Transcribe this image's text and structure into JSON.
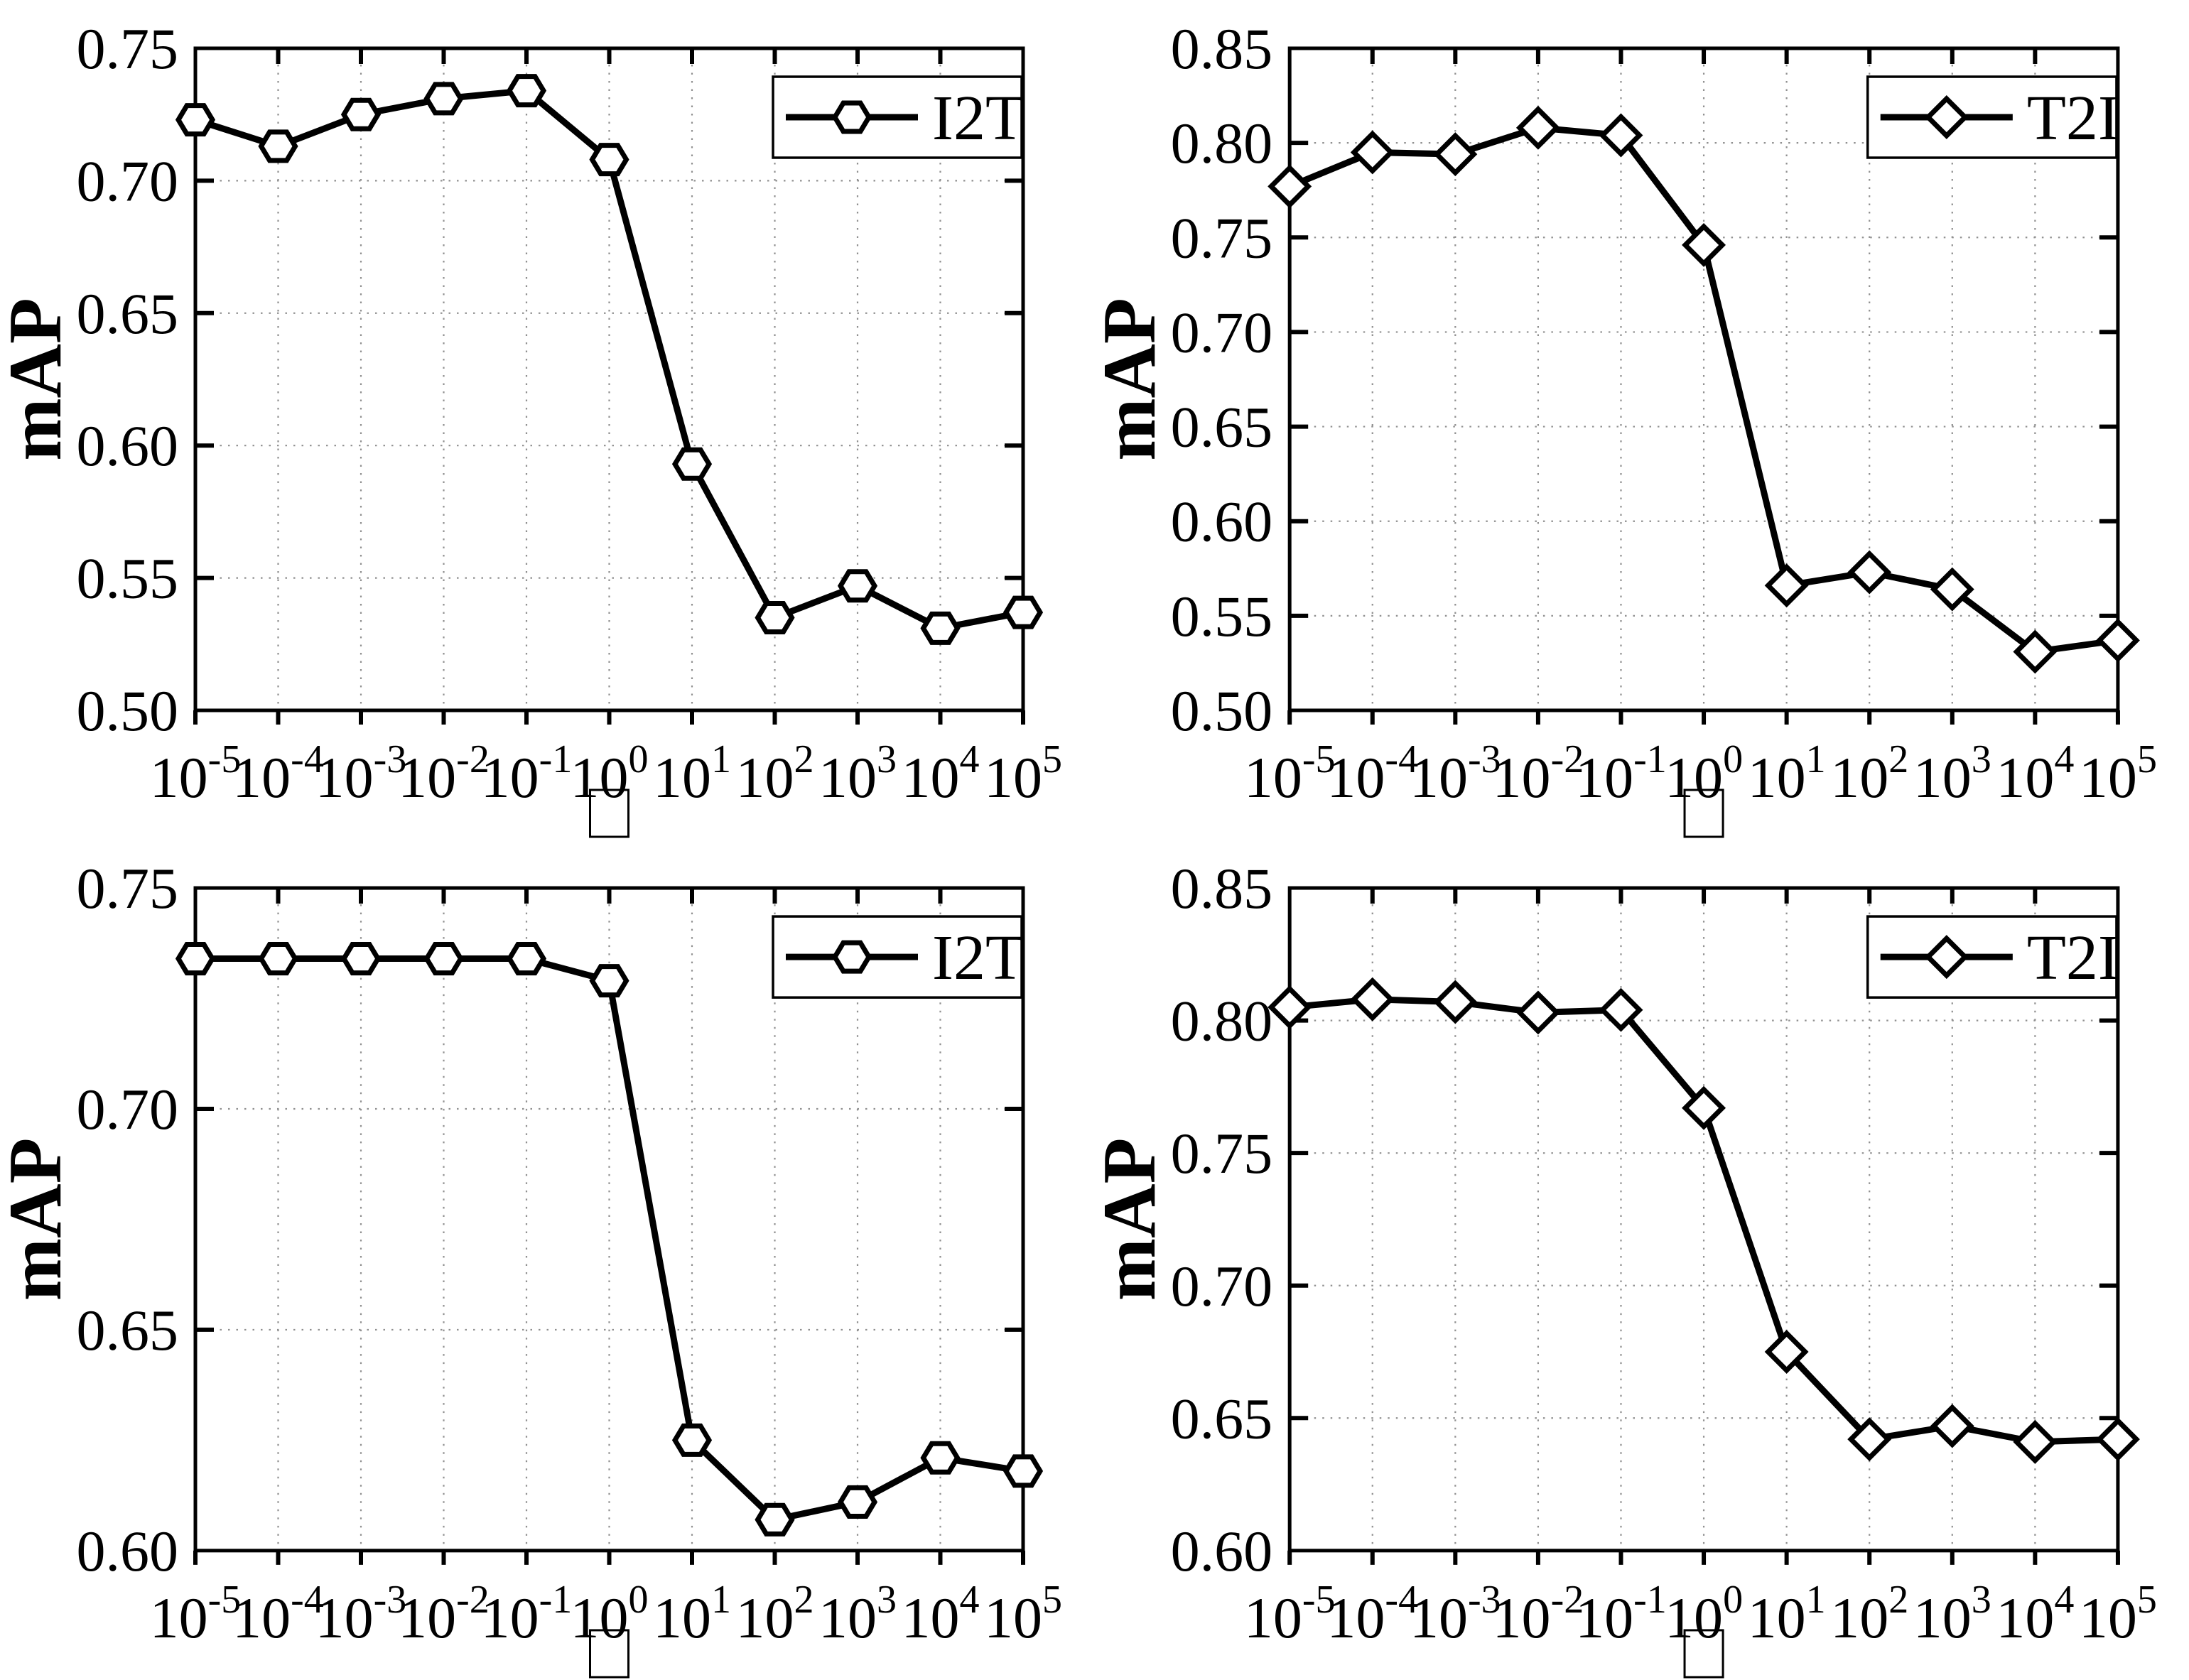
{
  "figure_title": "",
  "style": {
    "background": "#ffffff",
    "line_color": "#000000",
    "axis_color": "#000000",
    "grid_color": "#909090",
    "marker_fill": "#ffffff",
    "text_color": "#000000"
  },
  "chart_data": [
    {
      "type": "line",
      "position": "top-left",
      "title": "",
      "xlabel": "□",
      "xlabel_note": "missing-glyph tofu box",
      "ylabel": "mAP",
      "xscale": "log",
      "x_values": [
        1e-05,
        0.0001,
        0.001,
        0.01,
        0.1,
        1,
        10,
        100,
        1000,
        10000,
        100000
      ],
      "x_tick_labels": [
        "10^-5",
        "10^-4",
        "10^-3",
        "10^-2",
        "10^-1",
        "10^0",
        "10^1",
        "10^2",
        "10^3",
        "10^4",
        "10^5"
      ],
      "ylim": [
        0.5,
        0.75
      ],
      "y_tick_labels": [
        "0.50",
        "0.55",
        "0.60",
        "0.65",
        "0.70",
        "0.75"
      ],
      "grid": "dotted",
      "legend_position": "top-right",
      "series": [
        {
          "name": "I2T",
          "marker": "hexagon",
          "values": [
            0.723,
            0.713,
            0.725,
            0.731,
            0.734,
            0.708,
            0.593,
            0.535,
            0.547,
            0.531,
            0.537
          ]
        }
      ]
    },
    {
      "type": "line",
      "position": "top-right",
      "title": "",
      "xlabel": "□",
      "xlabel_note": "missing-glyph tofu box",
      "ylabel": "mAP",
      "xscale": "log",
      "x_values": [
        1e-05,
        0.0001,
        0.001,
        0.01,
        0.1,
        1,
        10,
        100,
        1000,
        10000,
        100000
      ],
      "x_tick_labels": [
        "10^-5",
        "10^-4",
        "10^-3",
        "10^-2",
        "10^-1",
        "10^0",
        "10^1",
        "10^2",
        "10^3",
        "10^4",
        "10^5"
      ],
      "ylim": [
        0.5,
        0.85
      ],
      "y_tick_labels": [
        "0.50",
        "0.55",
        "0.60",
        "0.65",
        "0.70",
        "0.75",
        "0.80",
        "0.85"
      ],
      "grid": "dotted",
      "legend_position": "top-right",
      "series": [
        {
          "name": "T2I",
          "marker": "diamond",
          "values": [
            0.777,
            0.795,
            0.794,
            0.808,
            0.804,
            0.746,
            0.566,
            0.573,
            0.564,
            0.531,
            0.537
          ]
        }
      ]
    },
    {
      "type": "line",
      "position": "bottom-left",
      "title": "",
      "xlabel": "□",
      "xlabel_note": "missing-glyph tofu box",
      "ylabel": "mAP",
      "xscale": "log",
      "x_values": [
        1e-05,
        0.0001,
        0.001,
        0.01,
        0.1,
        1,
        10,
        100,
        1000,
        10000,
        100000
      ],
      "x_tick_labels": [
        "10^-5",
        "10^-4",
        "10^-3",
        "10^-2",
        "10^-1",
        "10^0",
        "10^1",
        "10^2",
        "10^3",
        "10^4",
        "10^5"
      ],
      "ylim": [
        0.6,
        0.75
      ],
      "y_tick_labels": [
        "0.60",
        "0.65",
        "0.70",
        "0.75"
      ],
      "grid": "dotted",
      "legend_position": "top-right",
      "series": [
        {
          "name": "I2T",
          "marker": "hexagon",
          "values": [
            0.734,
            0.734,
            0.734,
            0.734,
            0.734,
            0.729,
            0.625,
            0.607,
            0.611,
            0.621,
            0.618
          ]
        }
      ]
    },
    {
      "type": "line",
      "position": "bottom-right",
      "title": "",
      "xlabel": "□",
      "xlabel_note": "missing-glyph tofu box",
      "ylabel": "mAP",
      "xscale": "log",
      "x_values": [
        1e-05,
        0.0001,
        0.001,
        0.01,
        0.1,
        1,
        10,
        100,
        1000,
        10000,
        100000
      ],
      "x_tick_labels": [
        "10^-5",
        "10^-4",
        "10^-3",
        "10^-2",
        "10^-1",
        "10^0",
        "10^1",
        "10^2",
        "10^3",
        "10^4",
        "10^5"
      ],
      "ylim": [
        0.6,
        0.85
      ],
      "y_tick_labels": [
        "0.60",
        "0.65",
        "0.70",
        "0.75",
        "0.80",
        "0.85"
      ],
      "grid": "dotted",
      "legend_position": "top-right",
      "series": [
        {
          "name": "T2I",
          "marker": "diamond",
          "values": [
            0.805,
            0.808,
            0.807,
            0.803,
            0.804,
            0.767,
            0.675,
            0.642,
            0.647,
            0.641,
            0.642
          ]
        }
      ]
    }
  ]
}
